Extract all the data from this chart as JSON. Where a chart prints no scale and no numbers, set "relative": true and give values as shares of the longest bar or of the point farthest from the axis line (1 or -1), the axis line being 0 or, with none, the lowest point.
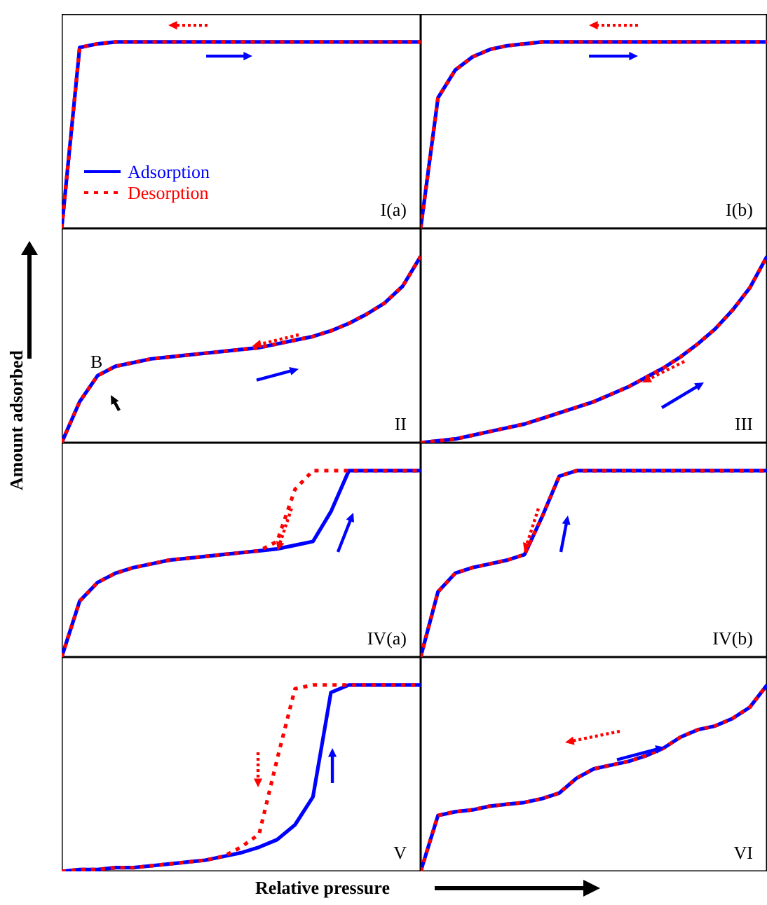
{
  "chart_data": [
    {
      "type": "line",
      "relative": true,
      "title": "I(a)",
      "legend": "bottom left",
      "categories": [
        null,
        null,
        null,
        null,
        null,
        null,
        null,
        null,
        null,
        null,
        null,
        null,
        null,
        null,
        null,
        null,
        null,
        null,
        null,
        null,
        null
      ],
      "series": [
        {
          "name": "Adsorption",
          "color": "#0000ff",
          "line_style": "solid",
          "values": [
            0,
            0.97,
            0.99,
            1,
            1,
            1,
            1,
            1,
            1,
            1,
            1,
            1,
            1,
            1,
            1,
            1,
            1,
            1,
            1,
            1,
            1
          ]
        },
        {
          "name": "Desorption",
          "color": "#ff0000",
          "line_style": "dotted",
          "values": [
            0,
            0.97,
            0.99,
            1,
            1,
            1,
            1,
            1,
            1,
            1,
            1,
            1,
            1,
            1,
            1,
            1,
            1,
            1,
            1,
            1,
            1
          ]
        }
      ]
    },
    {
      "type": "line",
      "relative": true,
      "title": "I(b)",
      "categories": [
        null,
        null,
        null,
        null,
        null,
        null,
        null,
        null,
        null,
        null,
        null,
        null,
        null,
        null,
        null,
        null,
        null,
        null,
        null,
        null,
        null
      ],
      "series": [
        {
          "color": "#0000ff",
          "line_style": "solid",
          "values": [
            0,
            0.7,
            0.85,
            0.92,
            0.96,
            0.98,
            0.99,
            1,
            1,
            1,
            1,
            1,
            1,
            1,
            1,
            1,
            1,
            1,
            1,
            1,
            1
          ]
        },
        {
          "color": "#ff0000",
          "line_style": "dotted",
          "values": [
            0,
            0.7,
            0.85,
            0.92,
            0.96,
            0.98,
            0.99,
            1,
            1,
            1,
            1,
            1,
            1,
            1,
            1,
            1,
            1,
            1,
            1,
            1,
            1
          ]
        }
      ]
    },
    {
      "type": "line",
      "relative": true,
      "title": "II",
      "ylabel": "Amount adsorbed",
      "annotations": [
        "B"
      ],
      "categories": [
        null,
        null,
        null,
        null,
        null,
        null,
        null,
        null,
        null,
        null,
        null,
        null,
        null,
        null,
        null,
        null,
        null,
        null,
        null,
        null,
        null
      ],
      "series": [
        {
          "color": "#0000ff",
          "line_style": "solid",
          "values": [
            0,
            0.22,
            0.36,
            0.41,
            0.43,
            0.45,
            0.46,
            0.47,
            0.48,
            0.49,
            0.5,
            0.51,
            0.53,
            0.55,
            0.57,
            0.6,
            0.64,
            0.69,
            0.75,
            0.84,
            1
          ]
        },
        {
          "color": "#ff0000",
          "line_style": "dotted",
          "values": [
            0,
            0.22,
            0.36,
            0.41,
            0.43,
            0.45,
            0.46,
            0.47,
            0.48,
            0.49,
            0.5,
            0.51,
            0.53,
            0.55,
            0.57,
            0.6,
            0.64,
            0.69,
            0.75,
            0.84,
            1
          ]
        }
      ]
    },
    {
      "type": "line",
      "relative": true,
      "title": "III",
      "categories": [
        null,
        null,
        null,
        null,
        null,
        null,
        null,
        null,
        null,
        null,
        null,
        null,
        null,
        null,
        null,
        null,
        null,
        null,
        null,
        null,
        null
      ],
      "series": [
        {
          "color": "#0000ff",
          "line_style": "solid",
          "values": [
            0,
            0.01,
            0.02,
            0.04,
            0.06,
            0.08,
            0.1,
            0.13,
            0.16,
            0.19,
            0.22,
            0.26,
            0.3,
            0.35,
            0.4,
            0.46,
            0.53,
            0.61,
            0.71,
            0.83,
            1
          ]
        },
        {
          "color": "#ff0000",
          "line_style": "dotted",
          "values": [
            0,
            0.01,
            0.02,
            0.04,
            0.06,
            0.08,
            0.1,
            0.13,
            0.16,
            0.19,
            0.22,
            0.26,
            0.3,
            0.35,
            0.4,
            0.46,
            0.53,
            0.61,
            0.71,
            0.83,
            1
          ]
        }
      ]
    },
    {
      "type": "line",
      "relative": true,
      "title": "IV(a)",
      "categories": [
        null,
        null,
        null,
        null,
        null,
        null,
        null,
        null,
        null,
        null,
        null,
        null,
        null,
        null,
        null,
        null,
        null,
        null,
        null,
        null,
        null
      ],
      "series": [
        {
          "color": "#0000ff",
          "line_style": "solid",
          "values": [
            0,
            0.3,
            0.4,
            0.45,
            0.48,
            0.5,
            0.52,
            0.53,
            0.54,
            0.55,
            0.56,
            0.57,
            0.58,
            0.6,
            0.62,
            0.78,
            1,
            1,
            1,
            1,
            1
          ]
        },
        {
          "color": "#ff0000",
          "line_style": "dotted",
          "values": [
            0,
            0.3,
            0.4,
            0.45,
            0.48,
            0.5,
            0.52,
            0.53,
            0.54,
            0.55,
            0.56,
            0.57,
            0.62,
            0.9,
            1,
            1,
            1,
            1,
            1,
            1,
            1
          ]
        }
      ]
    },
    {
      "type": "line",
      "relative": true,
      "title": "IV(b)",
      "categories": [
        null,
        null,
        null,
        null,
        null,
        null,
        null,
        null,
        null,
        null,
        null,
        null,
        null,
        null,
        null,
        null,
        null,
        null,
        null,
        null,
        null
      ],
      "series": [
        {
          "color": "#0000ff",
          "line_style": "solid",
          "values": [
            0,
            0.35,
            0.45,
            0.48,
            0.5,
            0.52,
            0.55,
            0.75,
            0.97,
            1,
            1,
            1,
            1,
            1,
            1,
            1,
            1,
            1,
            1,
            1,
            1
          ]
        },
        {
          "color": "#ff0000",
          "line_style": "dotted",
          "values": [
            0,
            0.35,
            0.45,
            0.48,
            0.5,
            0.52,
            0.55,
            0.75,
            0.97,
            1,
            1,
            1,
            1,
            1,
            1,
            1,
            1,
            1,
            1,
            1,
            1
          ]
        }
      ]
    },
    {
      "type": "line",
      "relative": true,
      "title": "V",
      "xlabel": "Relative pressure",
      "categories": [
        null,
        null,
        null,
        null,
        null,
        null,
        null,
        null,
        null,
        null,
        null,
        null,
        null,
        null,
        null,
        null,
        null,
        null,
        null,
        null,
        null
      ],
      "series": [
        {
          "color": "#0000ff",
          "line_style": "solid",
          "values": [
            0,
            0.01,
            0.01,
            0.02,
            0.02,
            0.03,
            0.04,
            0.05,
            0.06,
            0.08,
            0.1,
            0.13,
            0.17,
            0.25,
            0.4,
            0.96,
            1,
            1,
            1,
            1,
            1
          ]
        },
        {
          "color": "#ff0000",
          "line_style": "dotted",
          "values": [
            0,
            0.01,
            0.01,
            0.02,
            0.02,
            0.03,
            0.04,
            0.05,
            0.06,
            0.08,
            0.13,
            0.2,
            0.6,
            0.98,
            1,
            1,
            1,
            1,
            1,
            1,
            1
          ]
        }
      ]
    },
    {
      "type": "line",
      "relative": true,
      "title": "VI",
      "categories": [
        null,
        null,
        null,
        null,
        null,
        null,
        null,
        null,
        null,
        null,
        null,
        null,
        null,
        null,
        null,
        null,
        null,
        null,
        null,
        null,
        null
      ],
      "series": [
        {
          "color": "#0000ff",
          "line_style": "solid",
          "values": [
            0,
            0.3,
            0.32,
            0.33,
            0.35,
            0.36,
            0.37,
            0.39,
            0.42,
            0.5,
            0.55,
            0.57,
            0.59,
            0.62,
            0.66,
            0.72,
            0.76,
            0.78,
            0.82,
            0.88,
            1
          ]
        },
        {
          "color": "#ff0000",
          "line_style": "dotted",
          "values": [
            0,
            0.3,
            0.32,
            0.33,
            0.35,
            0.36,
            0.37,
            0.39,
            0.42,
            0.5,
            0.55,
            0.57,
            0.59,
            0.62,
            0.66,
            0.72,
            0.76,
            0.78,
            0.82,
            0.88,
            1
          ]
        }
      ]
    }
  ]
}
